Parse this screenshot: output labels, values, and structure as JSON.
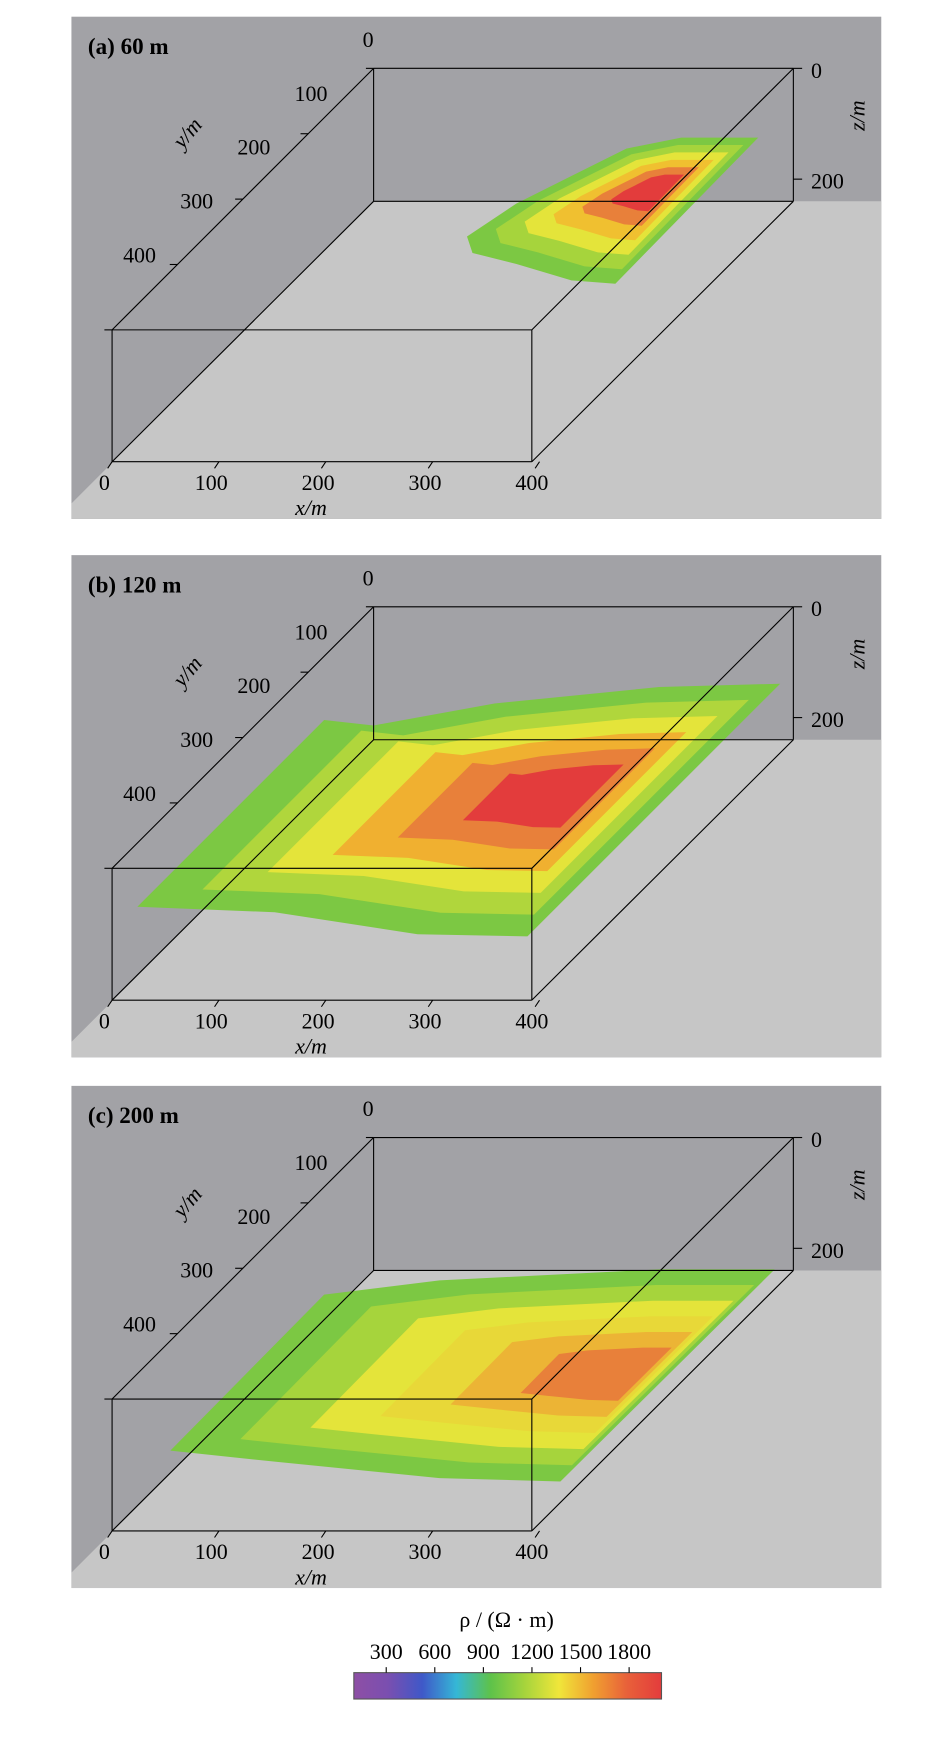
{
  "chart_data": [
    {
      "type": "slice3d",
      "title": "(a)  60 m",
      "x_label": "x/m",
      "y_label": "y/m",
      "z_label": "z/m",
      "xlim": [
        0,
        400
      ],
      "xticks": [
        0,
        100,
        200,
        300,
        400
      ],
      "ylim": [
        0,
        400
      ],
      "yticks": [
        0,
        100,
        200,
        300,
        400
      ],
      "zlim": [
        0,
        240
      ],
      "zticks": [
        0,
        200
      ]
    },
    {
      "type": "slice3d",
      "title": "(b)  120 m",
      "x_label": "x/m",
      "y_label": "y/m",
      "z_label": "z/m",
      "xlim": [
        0,
        400
      ],
      "xticks": [
        0,
        100,
        200,
        300,
        400
      ],
      "ylim": [
        0,
        400
      ],
      "yticks": [
        0,
        100,
        200,
        300,
        400
      ],
      "zlim": [
        0,
        240
      ],
      "zticks": [
        0,
        200
      ]
    },
    {
      "type": "slice3d",
      "title": "(c)  200 m",
      "x_label": "x/m",
      "y_label": "y/m",
      "z_label": "z/m",
      "xlim": [
        0,
        400
      ],
      "xticks": [
        0,
        100,
        200,
        300,
        400
      ],
      "ylim": [
        0,
        400
      ],
      "yticks": [
        0,
        100,
        200,
        300,
        400
      ],
      "zlim": [
        0,
        240
      ],
      "zticks": [
        0,
        200
      ]
    },
    {
      "type": "colorbar",
      "title": "ρ / (Ω · m)",
      "lim": [
        100,
        2000
      ],
      "ticks": [
        300,
        600,
        900,
        1200,
        1500,
        1800
      ],
      "colors": [
        "#8e4fa5",
        "#7a4fb0",
        "#3f58c8",
        "#35b7d6",
        "#5ec24a",
        "#a6d43c",
        "#f0e63a",
        "#f0a030",
        "#e8603a",
        "#e33c3c"
      ]
    }
  ]
}
